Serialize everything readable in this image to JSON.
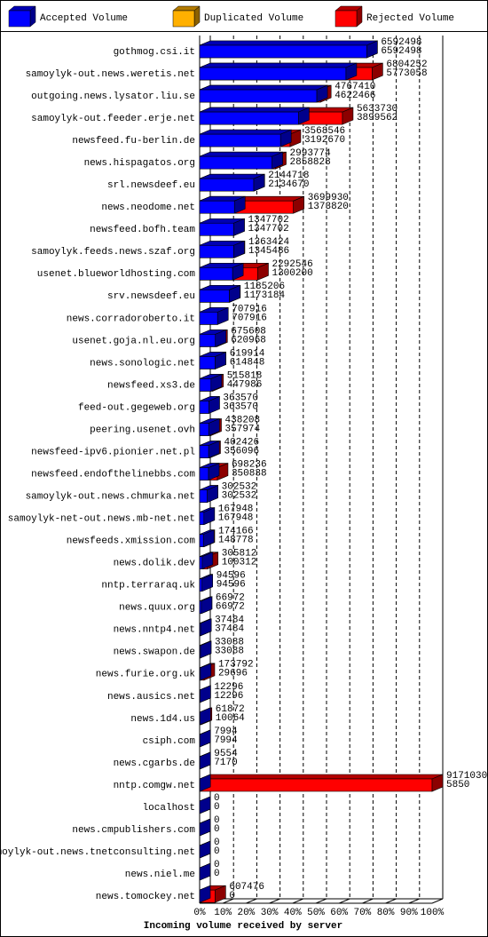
{
  "chart_data": {
    "type": "bar3d",
    "xlabel": "Incoming volume received by server",
    "legend": [
      {
        "name": "Accepted Volume",
        "color": "#0000ff"
      },
      {
        "name": "Duplicated Volume",
        "color": "#ffb000"
      },
      {
        "name": "Rejected Volume",
        "color": "#ff0000"
      }
    ],
    "categories": [
      "gothmog.csi.it",
      "samoylyk-out.news.weretis.net",
      "outgoing.news.lysator.liu.se",
      "samoylyk-out.feeder.erje.net",
      "newsfeed.fu-berlin.de",
      "news.hispagatos.org",
      "srl.newsdeef.eu",
      "news.neodome.net",
      "newsfeed.bofh.team",
      "samoylyk.feeds.news.szaf.org",
      "usenet.blueworldhosting.com",
      "srv.newsdeef.eu",
      "news.corradoroberto.it",
      "usenet.goja.nl.eu.org",
      "news.sonologic.net",
      "newsfeed.xs3.de",
      "feed-out.gegeweb.org",
      "peering.usenet.ovh",
      "newsfeed-ipv6.pionier.net.pl",
      "newsfeed.endofthelinebbs.com",
      "samoylyk-out.news.chmurka.net",
      "samoylyk-net-out.news.mb-net.net",
      "newsfeeds.xmission.com",
      "news.dolik.dev",
      "nntp.terraraq.uk",
      "news.quux.org",
      "news.nntp4.net",
      "news.swapon.de",
      "news.furie.org.uk",
      "news.ausics.net",
      "news.1d4.us",
      "csiph.com",
      "news.cgarbs.de",
      "nntp.comgw.net",
      "localhost",
      "news.cmpublishers.com",
      "samoylyk-out.news.tnetconsulting.net",
      "news.niel.me",
      "news.tomockey.net"
    ],
    "totals": [
      6592498,
      6804252,
      4767410,
      5633730,
      3568546,
      2993774,
      2144718,
      3699930,
      1347702,
      1363424,
      2292546,
      1185206,
      707916,
      675608,
      619914,
      515818,
      363570,
      438208,
      402426,
      698236,
      302532,
      167948,
      174166,
      305812,
      94596,
      66972,
      37484,
      33088,
      173792,
      12296,
      61872,
      7994,
      9554,
      9171030,
      0,
      0,
      0,
      0,
      607476
    ],
    "accepted": [
      6592498,
      5773058,
      4622466,
      3899562,
      3192670,
      2858828,
      2134670,
      1373820,
      1347702,
      1345486,
      1300200,
      1173184,
      707916,
      620968,
      614848,
      447986,
      363570,
      357974,
      356096,
      350838,
      302532,
      167948,
      148778,
      100312,
      94596,
      66972,
      37484,
      33088,
      29696,
      12296,
      10064,
      7994,
      7170,
      5850,
      0,
      0,
      0,
      0,
      0
    ],
    "xlim": [
      0,
      9171030
    ],
    "xticks": [
      {
        "value": 0,
        "label": "0%"
      },
      {
        "value": 917103,
        "label": "10%"
      },
      {
        "value": 1834206,
        "label": "20%"
      },
      {
        "value": 2751309,
        "label": "30%"
      },
      {
        "value": 3668412,
        "label": "40%"
      },
      {
        "value": 4585515,
        "label": "50%"
      },
      {
        "value": 5502618,
        "label": "60%"
      },
      {
        "value": 6419721,
        "label": "70%"
      },
      {
        "value": 7336824,
        "label": "80%"
      },
      {
        "value": 8253927,
        "label": "90%"
      },
      {
        "value": 9171030,
        "label": "100%"
      }
    ],
    "grid": true
  }
}
